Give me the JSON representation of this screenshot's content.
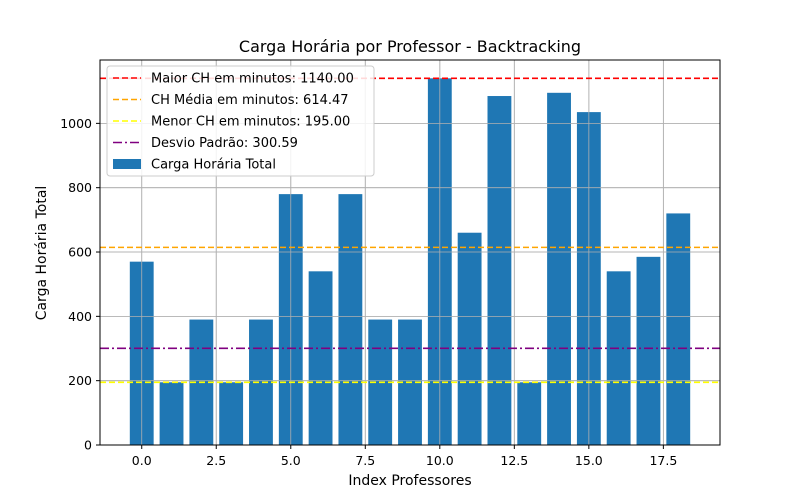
{
  "chart_data": {
    "type": "bar",
    "title": "Carga Horária por Professor - Backtracking",
    "xlabel": "Index Professores",
    "ylabel": "Carga Horária Total",
    "x": [
      0,
      1,
      2,
      3,
      4,
      5,
      6,
      7,
      8,
      9,
      10,
      11,
      12,
      13,
      14,
      15,
      16,
      17,
      18
    ],
    "values": [
      570,
      195,
      390,
      195,
      390,
      780,
      540,
      780,
      390,
      390,
      1140,
      660,
      1085,
      195,
      1095,
      1035,
      540,
      585,
      720
    ],
    "xlim": [
      -1.4,
      19.4
    ],
    "ylim": [
      0,
      1197
    ],
    "xticks": [
      0.0,
      2.5,
      5.0,
      7.5,
      10.0,
      12.5,
      15.0,
      17.5
    ],
    "xtick_labels": [
      "0.0",
      "2.5",
      "5.0",
      "7.5",
      "10.0",
      "12.5",
      "15.0",
      "17.5"
    ],
    "yticks": [
      0,
      200,
      400,
      600,
      800,
      1000
    ],
    "ytick_labels": [
      "0",
      "200",
      "400",
      "600",
      "800",
      "1000"
    ],
    "grid": true,
    "legend_position": "top-left",
    "bar_series": {
      "name": "Carga Horária Total",
      "color": "#1f77b4"
    },
    "hlines": [
      {
        "name": "Maior CH em minutos: 1140.00",
        "y": 1140.0,
        "color": "#ff0000",
        "style": "dashed"
      },
      {
        "name": "CH Média em minutos: 614.47",
        "y": 614.47,
        "color": "#ffa500",
        "style": "dashed"
      },
      {
        "name": "Menor CH em minutos: 195.00",
        "y": 195.0,
        "color": "#ffff00",
        "style": "dashed"
      },
      {
        "name": "Desvio Padrão: 300.59",
        "y": 300.59,
        "color": "#800080",
        "style": "dashdot"
      }
    ]
  }
}
